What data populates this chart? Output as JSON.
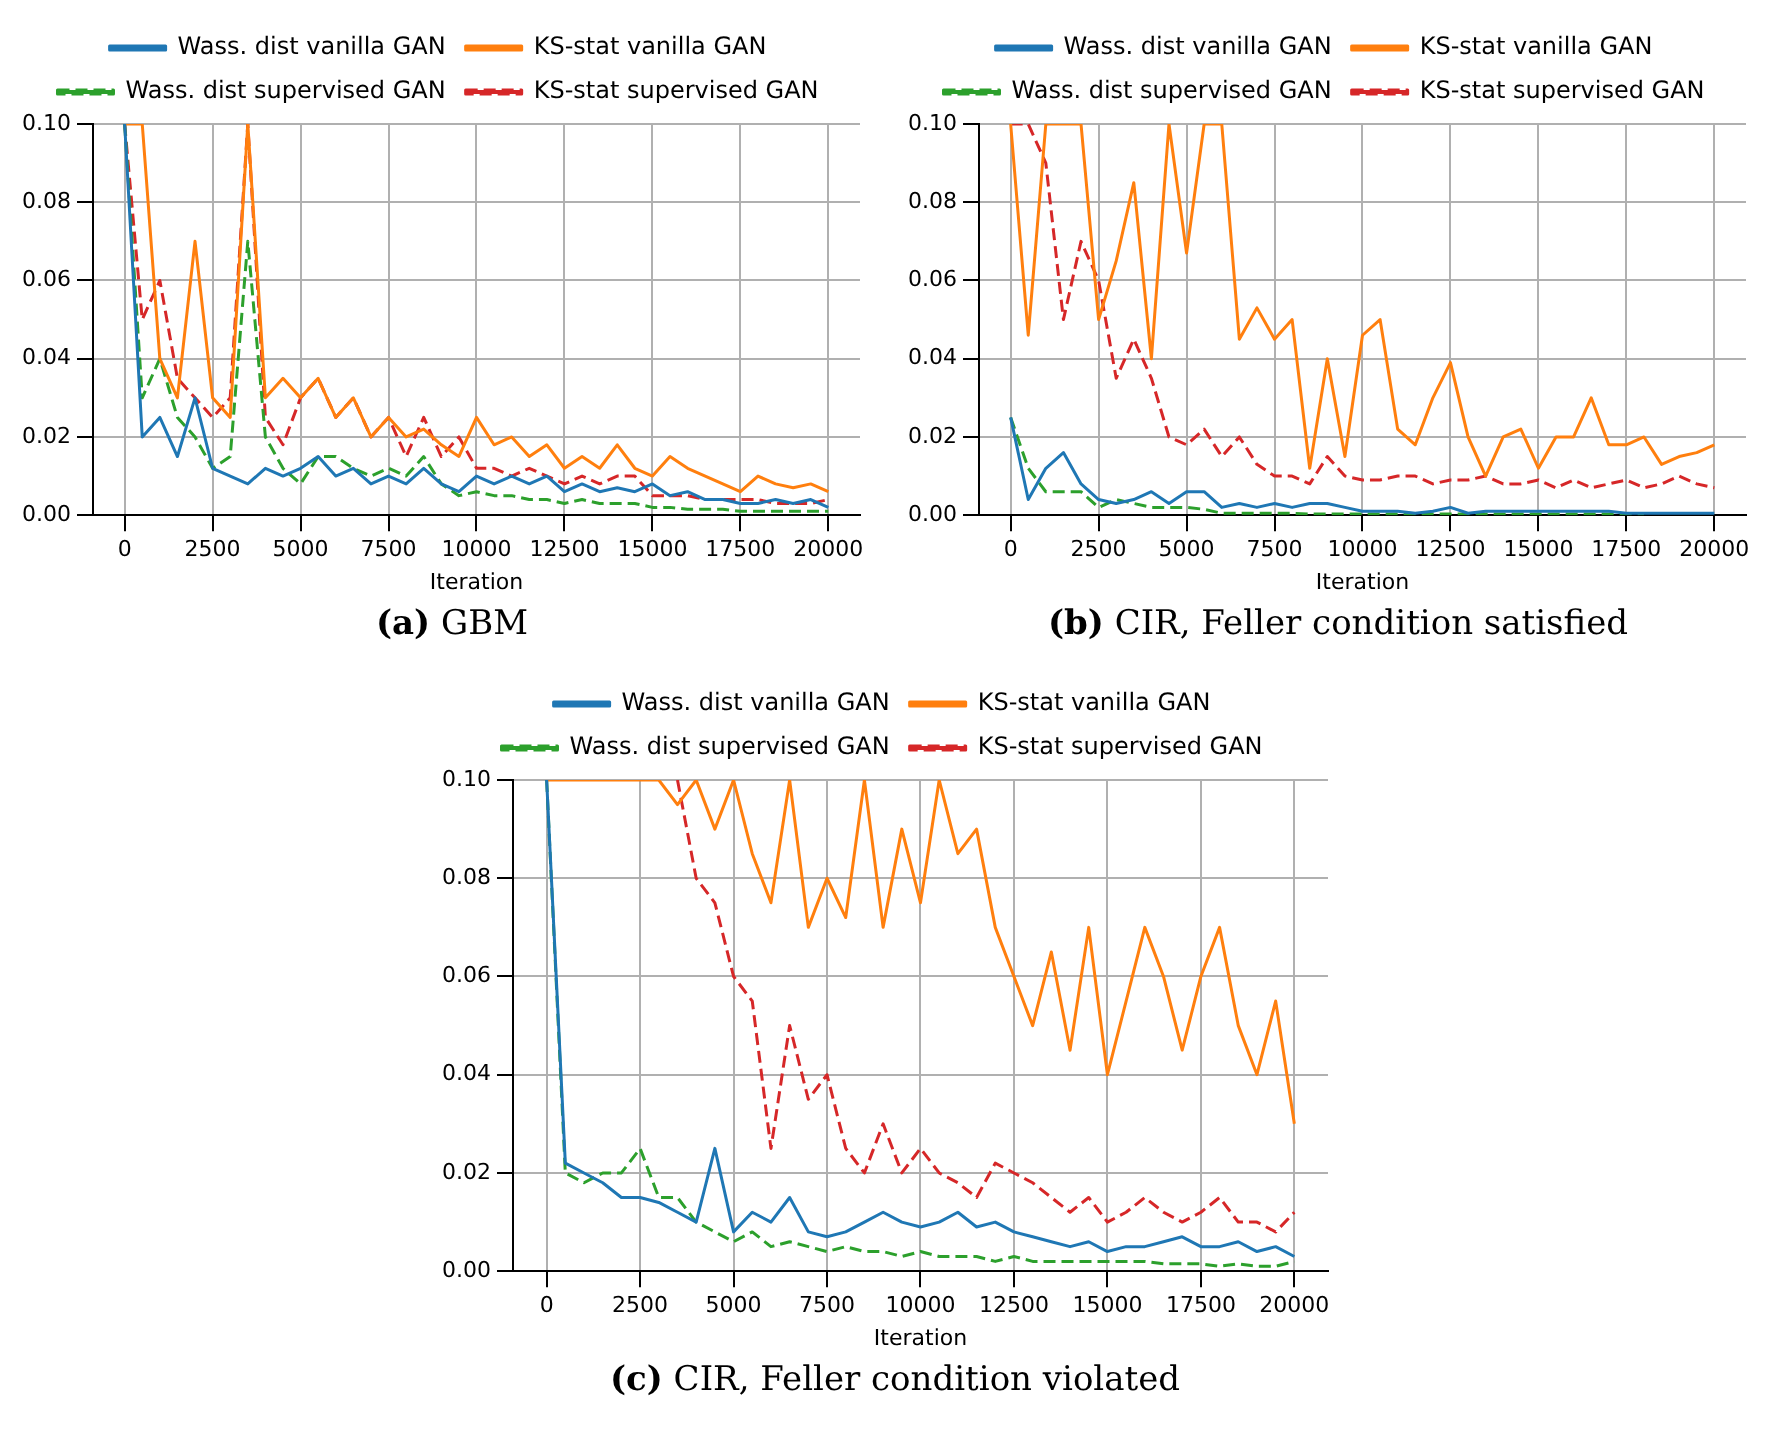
{
  "chart_data": [
    {
      "type": "line",
      "title": "(a) GBM",
      "xlabel": "Iteration",
      "x": [
        0,
        500,
        1000,
        1500,
        2000,
        2500,
        3000,
        3500,
        4000,
        4500,
        5000,
        5500,
        6000,
        6500,
        7000,
        7500,
        8000,
        8500,
        9000,
        9500,
        10000,
        10500,
        11000,
        11500,
        12000,
        12500,
        13000,
        13500,
        14000,
        14500,
        15000,
        15500,
        16000,
        16500,
        17000,
        17500,
        18000,
        18500,
        19000,
        19500,
        20000
      ],
      "xlim": [
        -900,
        20900
      ],
      "xticks": [
        0,
        2500,
        5000,
        7500,
        10000,
        12500,
        15000,
        17500,
        20000
      ],
      "ylim": [
        0,
        0.1
      ],
      "yticks": [
        {
          "value": 0,
          "label": "0.00"
        },
        {
          "value": 0.02,
          "label": "0.02"
        },
        {
          "value": 0.04,
          "label": "0.04"
        },
        {
          "value": 0.06,
          "label": "0.06"
        },
        {
          "value": 0.08,
          "label": "0.08"
        },
        {
          "value": 0.1,
          "label": "0.10"
        }
      ],
      "grid": true,
      "legend": "top",
      "series": [
        {
          "name": "Wass. dist vanilla GAN",
          "color": "#1f77b4",
          "line_style": "solid",
          "values": [
            0.1,
            0.02,
            0.025,
            0.015,
            0.03,
            0.012,
            0.01,
            0.008,
            0.012,
            0.01,
            0.012,
            0.015,
            0.01,
            0.012,
            0.008,
            0.01,
            0.008,
            0.012,
            0.008,
            0.006,
            0.01,
            0.008,
            0.01,
            0.008,
            0.01,
            0.006,
            0.008,
            0.006,
            0.007,
            0.006,
            0.008,
            0.005,
            0.006,
            0.004,
            0.004,
            0.003,
            0.003,
            0.004,
            0.003,
            0.004,
            0.002
          ]
        },
        {
          "name": "KS-stat vanilla GAN",
          "color": "#ff7f0e",
          "line_style": "solid",
          "values": [
            0.1,
            0.1,
            0.04,
            0.03,
            0.07,
            0.03,
            0.025,
            0.1,
            0.03,
            0.035,
            0.03,
            0.035,
            0.025,
            0.03,
            0.02,
            0.025,
            0.02,
            0.022,
            0.018,
            0.015,
            0.025,
            0.018,
            0.02,
            0.015,
            0.018,
            0.012,
            0.015,
            0.012,
            0.018,
            0.012,
            0.01,
            0.015,
            0.012,
            0.01,
            0.008,
            0.006,
            0.01,
            0.008,
            0.007,
            0.008,
            0.006
          ]
        },
        {
          "name": "Wass. dist supervised GAN",
          "color": "#2ca02c",
          "line_style": "dashed",
          "values": [
            0.1,
            0.03,
            0.04,
            0.025,
            0.02,
            0.012,
            0.015,
            0.07,
            0.02,
            0.012,
            0.008,
            0.015,
            0.015,
            0.012,
            0.01,
            0.012,
            0.01,
            0.015,
            0.008,
            0.005,
            0.006,
            0.005,
            0.005,
            0.004,
            0.004,
            0.003,
            0.004,
            0.003,
            0.003,
            0.003,
            0.002,
            0.002,
            0.0015,
            0.0015,
            0.0015,
            0.001,
            0.001,
            0.001,
            0.001,
            0.001,
            0.001
          ]
        },
        {
          "name": "KS-stat supervised GAN",
          "color": "#d62728",
          "line_style": "dashed",
          "values": [
            0.1,
            0.05,
            0.06,
            0.035,
            0.03,
            0.025,
            0.03,
            0.1,
            0.025,
            0.018,
            0.03,
            0.035,
            0.025,
            0.03,
            0.02,
            0.025,
            0.015,
            0.025,
            0.015,
            0.02,
            0.012,
            0.012,
            0.01,
            0.012,
            0.01,
            0.008,
            0.01,
            0.008,
            0.01,
            0.01,
            0.005,
            0.005,
            0.005,
            0.004,
            0.004,
            0.004,
            0.004,
            0.003,
            0.003,
            0.003,
            0.004
          ]
        }
      ]
    },
    {
      "type": "line",
      "title": "(b) CIR, Feller condition satisfied",
      "xlabel": "Iteration",
      "x": [
        0,
        500,
        1000,
        1500,
        2000,
        2500,
        3000,
        3500,
        4000,
        4500,
        5000,
        5500,
        6000,
        6500,
        7000,
        7500,
        8000,
        8500,
        9000,
        9500,
        10000,
        10500,
        11000,
        11500,
        12000,
        12500,
        13000,
        13500,
        14000,
        14500,
        15000,
        15500,
        16000,
        16500,
        17000,
        17500,
        18000,
        18500,
        19000,
        19500,
        20000
      ],
      "xlim": [
        -900,
        20900
      ],
      "xticks": [
        0,
        2500,
        5000,
        7500,
        10000,
        12500,
        15000,
        17500,
        20000
      ],
      "ylim": [
        0,
        0.1
      ],
      "yticks": [
        {
          "value": 0,
          "label": "0.00"
        },
        {
          "value": 0.02,
          "label": "0.02"
        },
        {
          "value": 0.04,
          "label": "0.04"
        },
        {
          "value": 0.06,
          "label": "0.06"
        },
        {
          "value": 0.08,
          "label": "0.08"
        },
        {
          "value": 0.1,
          "label": "0.10"
        }
      ],
      "grid": true,
      "legend": "top",
      "series": [
        {
          "name": "Wass. dist vanilla GAN",
          "color": "#1f77b4",
          "line_style": "solid",
          "values": [
            0.025,
            0.004,
            0.012,
            0.016,
            0.008,
            0.004,
            0.003,
            0.004,
            0.006,
            0.003,
            0.006,
            0.006,
            0.002,
            0.003,
            0.002,
            0.003,
            0.002,
            0.003,
            0.003,
            0.002,
            0.001,
            0.001,
            0.001,
            0.0005,
            0.001,
            0.002,
            0.0005,
            0.001,
            0.001,
            0.001,
            0.001,
            0.001,
            0.001,
            0.001,
            0.001,
            0.0005,
            0.0005,
            0.0005,
            0.0005,
            0.0005,
            0.0005
          ]
        },
        {
          "name": "KS-stat vanilla GAN",
          "color": "#ff7f0e",
          "line_style": "solid",
          "values": [
            0.1,
            0.046,
            0.1,
            0.1,
            0.1,
            0.05,
            0.065,
            0.085,
            0.04,
            0.1,
            0.067,
            0.1,
            0.1,
            0.045,
            0.053,
            0.045,
            0.05,
            0.012,
            0.04,
            0.015,
            0.046,
            0.05,
            0.022,
            0.018,
            0.03,
            0.039,
            0.02,
            0.01,
            0.02,
            0.022,
            0.012,
            0.02,
            0.02,
            0.03,
            0.018,
            0.018,
            0.02,
            0.013,
            0.015,
            0.016,
            0.018
          ]
        },
        {
          "name": "Wass. dist supervised GAN",
          "color": "#2ca02c",
          "line_style": "dashed",
          "values": [
            0.025,
            0.012,
            0.006,
            0.006,
            0.006,
            0.002,
            0.004,
            0.003,
            0.002,
            0.002,
            0.002,
            0.0015,
            0.0005,
            0.0005,
            0.0005,
            0.0005,
            0.0005,
            0.0003,
            0.0003,
            0.0003,
            0.0003,
            0.0003,
            0.0003,
            0.0003,
            0.0003,
            0.0003,
            0.0003,
            0.0003,
            0.0003,
            0.0003,
            0.0003,
            0.0003,
            0.0003,
            0.0003,
            0.0003,
            0.0003,
            0.0003,
            null,
            null,
            null,
            null
          ]
        },
        {
          "name": "KS-stat supervised GAN",
          "color": "#d62728",
          "line_style": "dashed",
          "values": [
            0.1,
            0.1,
            0.09,
            0.05,
            0.07,
            0.06,
            0.035,
            0.045,
            0.035,
            0.02,
            0.018,
            0.022,
            0.015,
            0.02,
            0.013,
            0.01,
            0.01,
            0.008,
            0.015,
            0.01,
            0.009,
            0.009,
            0.01,
            0.01,
            0.008,
            0.009,
            0.009,
            0.01,
            0.008,
            0.008,
            0.009,
            0.007,
            0.009,
            0.007,
            0.008,
            0.009,
            0.007,
            0.008,
            0.01,
            0.008,
            0.007
          ]
        }
      ]
    },
    {
      "type": "line",
      "title": "(c) CIR, Feller condition violated",
      "xlabel": "Iteration",
      "x": [
        0,
        500,
        1000,
        1500,
        2000,
        2500,
        3000,
        3500,
        4000,
        4500,
        5000,
        5500,
        6000,
        6500,
        7000,
        7500,
        8000,
        8500,
        9000,
        9500,
        10000,
        10500,
        11000,
        11500,
        12000,
        12500,
        13000,
        13500,
        14000,
        14500,
        15000,
        15500,
        16000,
        16500,
        17000,
        17500,
        18000,
        18500,
        19000,
        19500,
        20000
      ],
      "xlim": [
        -900,
        20900
      ],
      "xticks": [
        0,
        2500,
        5000,
        7500,
        10000,
        12500,
        15000,
        17500,
        20000
      ],
      "ylim": [
        0,
        0.1
      ],
      "yticks": [
        {
          "value": 0,
          "label": "0.00"
        },
        {
          "value": 0.02,
          "label": "0.02"
        },
        {
          "value": 0.04,
          "label": "0.04"
        },
        {
          "value": 0.06,
          "label": "0.06"
        },
        {
          "value": 0.08,
          "label": "0.08"
        },
        {
          "value": 0.1,
          "label": "0.10"
        }
      ],
      "grid": true,
      "legend": "top",
      "series": [
        {
          "name": "Wass. dist vanilla GAN",
          "color": "#1f77b4",
          "line_style": "solid",
          "values": [
            0.1,
            0.022,
            0.02,
            0.018,
            0.015,
            0.015,
            0.014,
            0.012,
            0.01,
            0.025,
            0.008,
            0.012,
            0.01,
            0.015,
            0.008,
            0.007,
            0.008,
            0.01,
            0.012,
            0.01,
            0.009,
            0.01,
            0.012,
            0.009,
            0.01,
            0.008,
            0.007,
            0.006,
            0.005,
            0.006,
            0.004,
            0.005,
            0.005,
            0.006,
            0.007,
            0.005,
            0.005,
            0.006,
            0.004,
            0.005,
            0.003
          ]
        },
        {
          "name": "KS-stat vanilla GAN",
          "color": "#ff7f0e",
          "line_style": "solid",
          "values": [
            0.1,
            0.1,
            0.1,
            0.1,
            0.1,
            0.1,
            0.1,
            0.095,
            0.1,
            0.09,
            0.1,
            0.085,
            0.075,
            0.1,
            0.07,
            0.08,
            0.072,
            0.1,
            0.07,
            0.09,
            0.075,
            0.1,
            0.085,
            0.09,
            0.07,
            0.06,
            0.05,
            0.065,
            0.045,
            0.07,
            0.04,
            0.055,
            0.07,
            0.06,
            0.045,
            0.06,
            0.07,
            0.05,
            0.04,
            0.055,
            0.03
          ]
        },
        {
          "name": "Wass. dist supervised GAN",
          "color": "#2ca02c",
          "line_style": "dashed",
          "values": [
            0.1,
            0.02,
            0.018,
            0.02,
            0.02,
            0.025,
            0.015,
            0.015,
            0.01,
            0.008,
            0.006,
            0.008,
            0.005,
            0.006,
            0.005,
            0.004,
            0.005,
            0.004,
            0.004,
            0.003,
            0.004,
            0.003,
            0.003,
            0.003,
            0.002,
            0.003,
            0.002,
            0.002,
            0.002,
            0.002,
            0.002,
            0.002,
            0.002,
            0.0015,
            0.0015,
            0.0015,
            0.001,
            0.0015,
            0.001,
            0.001,
            0.002
          ]
        },
        {
          "name": "KS-stat supervised GAN",
          "color": "#d62728",
          "line_style": "dashed",
          "values": [
            null,
            null,
            null,
            null,
            null,
            null,
            null,
            0.1,
            0.08,
            0.075,
            0.06,
            0.055,
            0.025,
            0.05,
            0.035,
            0.04,
            0.025,
            0.02,
            0.03,
            0.02,
            0.025,
            0.02,
            0.018,
            0.015,
            0.022,
            0.02,
            0.018,
            0.015,
            0.012,
            0.015,
            0.01,
            0.012,
            0.015,
            0.012,
            0.01,
            0.012,
            0.015,
            0.01,
            0.01,
            0.008,
            0.012
          ]
        }
      ]
    }
  ]
}
